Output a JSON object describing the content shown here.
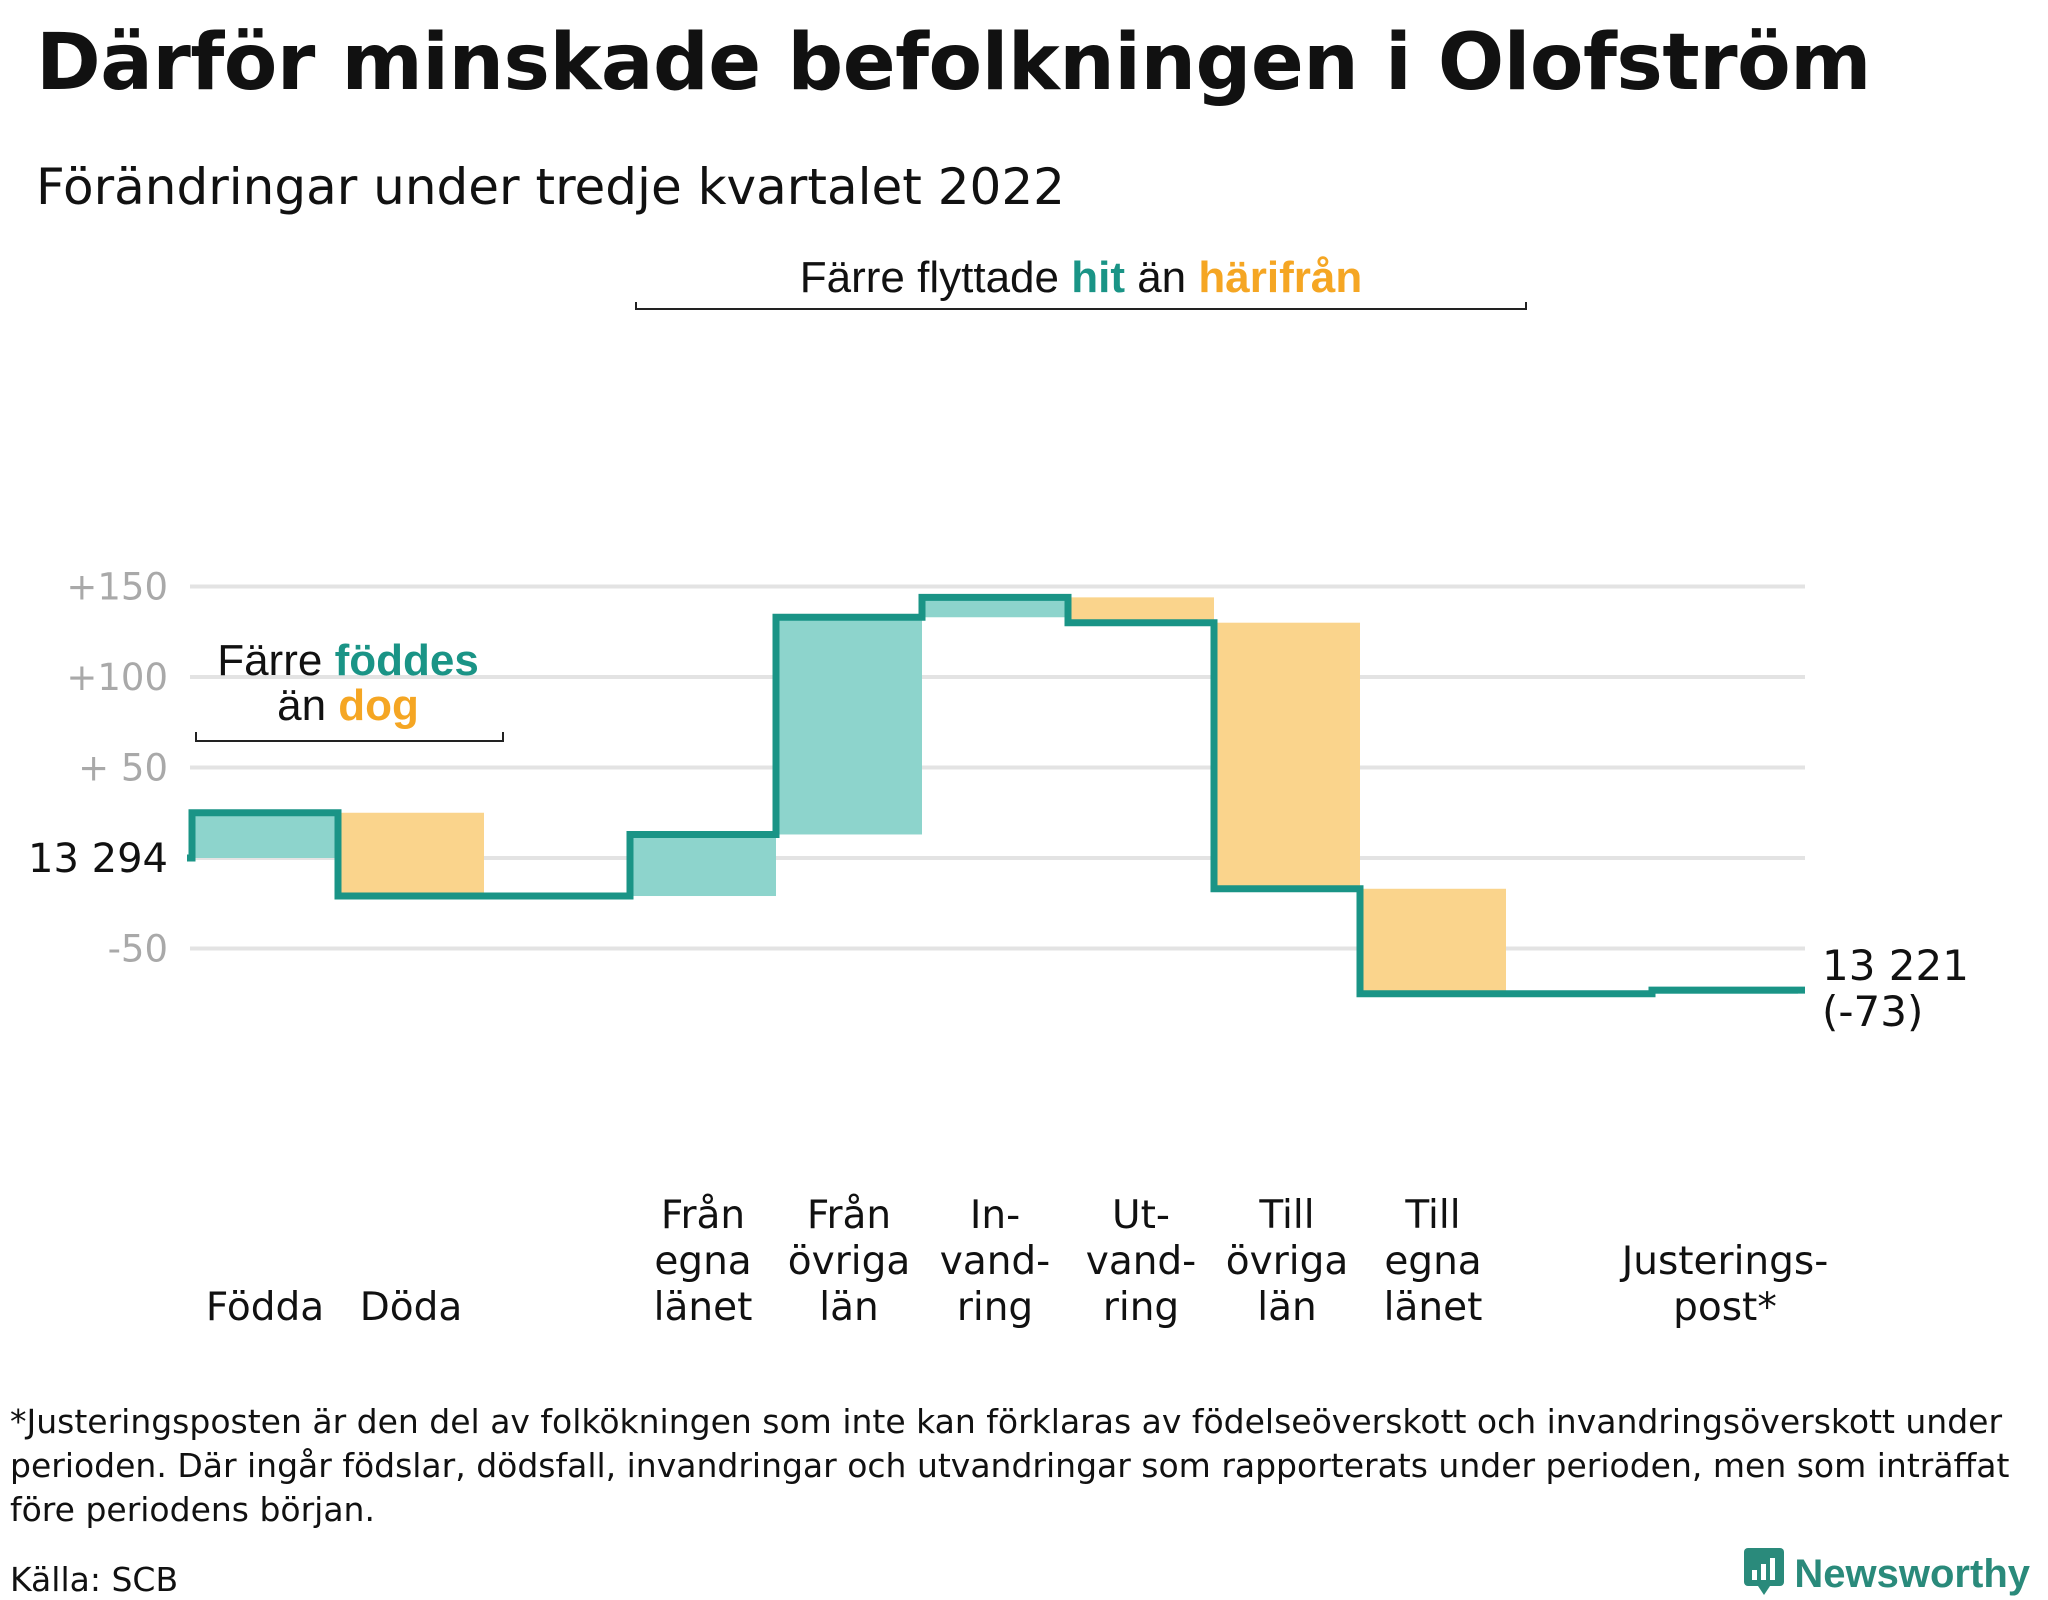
{
  "title": "Därför minskade befolkningen i Olofström",
  "subtitle": "Förändringar under tredje kvartalet 2022",
  "footnote": "*Justeringsposten är den del av folkökningen som inte kan förklaras av födelseöverskott och invandringsöverskott under perioden. Där ingår födslar, dödsfall, invandringar och utvandringar som rapporterats under perioden, men som inträffat före periodens början.",
  "source": "Källa: SCB",
  "brand": {
    "name": "Newsworthy",
    "icon": "newsworthy-logo-icon"
  },
  "colors": {
    "increase": "#8dd4cc",
    "decrease": "#fad48c",
    "line": "#1a9486",
    "grid": "#e3e3e3",
    "tick": "#a9a9a9",
    "teal_text": "#1a9486",
    "orange_text": "#f5a623"
  },
  "chart_data": {
    "type": "waterfall",
    "baseline": 13294,
    "start_label": "13 294",
    "end_label": "13 221",
    "end_change_label": "(-73)",
    "y_ticks": [
      {
        "value": 150,
        "label": "+150"
      },
      {
        "value": 100,
        "label": "+100"
      },
      {
        "value": 50,
        "label": "+ 50"
      },
      {
        "value": -50,
        "label": "-50"
      }
    ],
    "ylim": [
      -80,
      160
    ],
    "steps": [
      {
        "label": [
          "Födda"
        ],
        "value": 25
      },
      {
        "label": [
          "Döda"
        ],
        "value": -46
      },
      {
        "label": [],
        "value": 0
      },
      {
        "label": [
          "Från",
          "egna",
          "länet"
        ],
        "value": 34
      },
      {
        "label": [
          "Från",
          "övriga",
          "län"
        ],
        "value": 120
      },
      {
        "label": [
          "In-",
          "vand-",
          "ring"
        ],
        "value": 11
      },
      {
        "label": [
          "Ut-",
          "vand-",
          "ring"
        ],
        "value": -14
      },
      {
        "label": [
          "Till",
          "övriga",
          "län"
        ],
        "value": -147
      },
      {
        "label": [
          "Till",
          "egna",
          "länet"
        ],
        "value": -58
      },
      {
        "label": [],
        "value": 0
      },
      {
        "label": [
          "Justerings-",
          "post*"
        ],
        "value": 2
      }
    ],
    "annotations": [
      {
        "parts": [
          {
            "text": "Färre ",
            "color": "dark"
          },
          {
            "text": "föddes",
            "color": "teal"
          }
        ],
        "parts2": [
          {
            "text": "än ",
            "color": "dark"
          },
          {
            "text": "dog",
            "color": "orange"
          }
        ]
      },
      {
        "parts": [
          {
            "text": "Färre flyttade ",
            "color": "dark"
          },
          {
            "text": "hit",
            "color": "teal"
          },
          {
            "text": " än ",
            "color": "dark"
          },
          {
            "text": "härifrån",
            "color": "orange"
          }
        ]
      }
    ]
  }
}
